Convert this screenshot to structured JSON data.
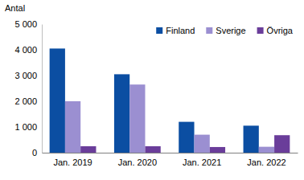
{
  "chart_data": {
    "type": "bar",
    "y_label": "Antal",
    "categories": [
      "Jan. 2019",
      "Jan. 2020",
      "Jan. 2021",
      "Jan. 2022"
    ],
    "series": [
      {
        "name": "Finland",
        "color": "#0b4ea2",
        "values": [
          4050,
          3050,
          1200,
          1050
        ]
      },
      {
        "name": "Sverige",
        "color": "#9b8fd1",
        "values": [
          2000,
          2650,
          700,
          230
        ]
      },
      {
        "name": "Övriga",
        "color": "#6a3d9a",
        "values": [
          250,
          250,
          220,
          680
        ]
      }
    ],
    "ylim": [
      0,
      5000
    ],
    "yticks": [
      0,
      {
        "value": 1000,
        "label": "1 000"
      },
      {
        "value": 2000,
        "label": "2 000"
      },
      {
        "value": 3000,
        "label": "3 000"
      },
      {
        "value": 4000,
        "label": "4 000"
      },
      {
        "value": 5000,
        "label": "5 000"
      }
    ],
    "grid": false,
    "legend": "top-right"
  }
}
